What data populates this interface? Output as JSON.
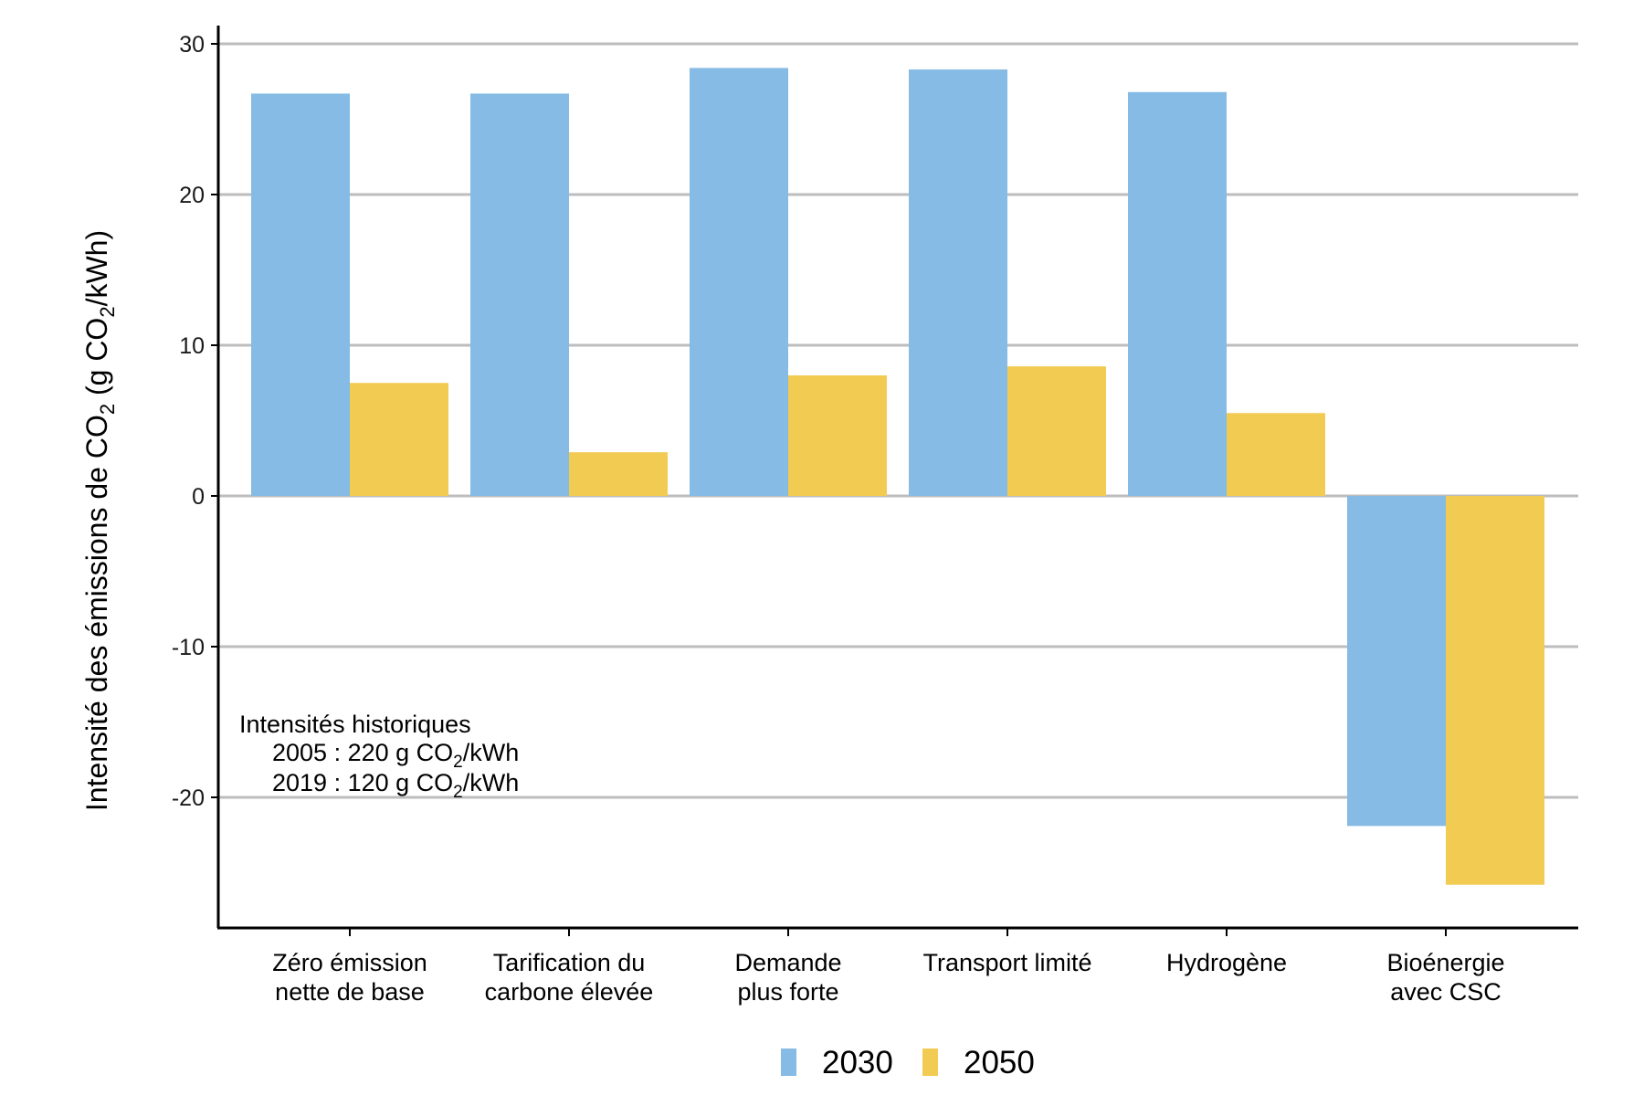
{
  "chart_data": {
    "type": "bar",
    "title": "",
    "xlabel": "",
    "ylabel": {
      "prefix": "Intensité des émissions de  CO",
      "sub": "2",
      "suffix_open": "  (g  CO",
      "suffix_sub": "2",
      "suffix_close": "/kWh)"
    },
    "ylim": [
      -28.5,
      30.5
    ],
    "yticks": [
      -20,
      -10,
      0,
      10,
      20,
      30
    ],
    "ytick_labels": [
      "-20",
      "-10",
      "0",
      "10",
      "20",
      "30"
    ],
    "grid": "horizontal",
    "legend_position": "bottom",
    "categories": [
      [
        "Zéro émission",
        "nette de base"
      ],
      [
        "Tarification du",
        "carbone élevée"
      ],
      [
        "Demande",
        "plus forte"
      ],
      [
        "Transport limité"
      ],
      [
        "Hydrogène"
      ],
      [
        "Bioénergie",
        "avec CSC"
      ]
    ],
    "series": [
      {
        "name": "2030",
        "color": "#85BBE4",
        "values": [
          26.7,
          26.7,
          28.4,
          28.3,
          26.8,
          -21.9
        ]
      },
      {
        "name": "2050",
        "color": "#F2CB52",
        "values": [
          7.5,
          2.9,
          8.0,
          8.6,
          5.5,
          -25.8
        ]
      }
    ],
    "annotation": {
      "title": "Intensités historiques",
      "lines": [
        {
          "lead": "2005 : 220 g  CO",
          "sub": "2",
          "tail": "/kWh"
        },
        {
          "lead": "2019 : 120 g  CO",
          "sub": "2",
          "tail": "/kWh"
        }
      ]
    }
  }
}
